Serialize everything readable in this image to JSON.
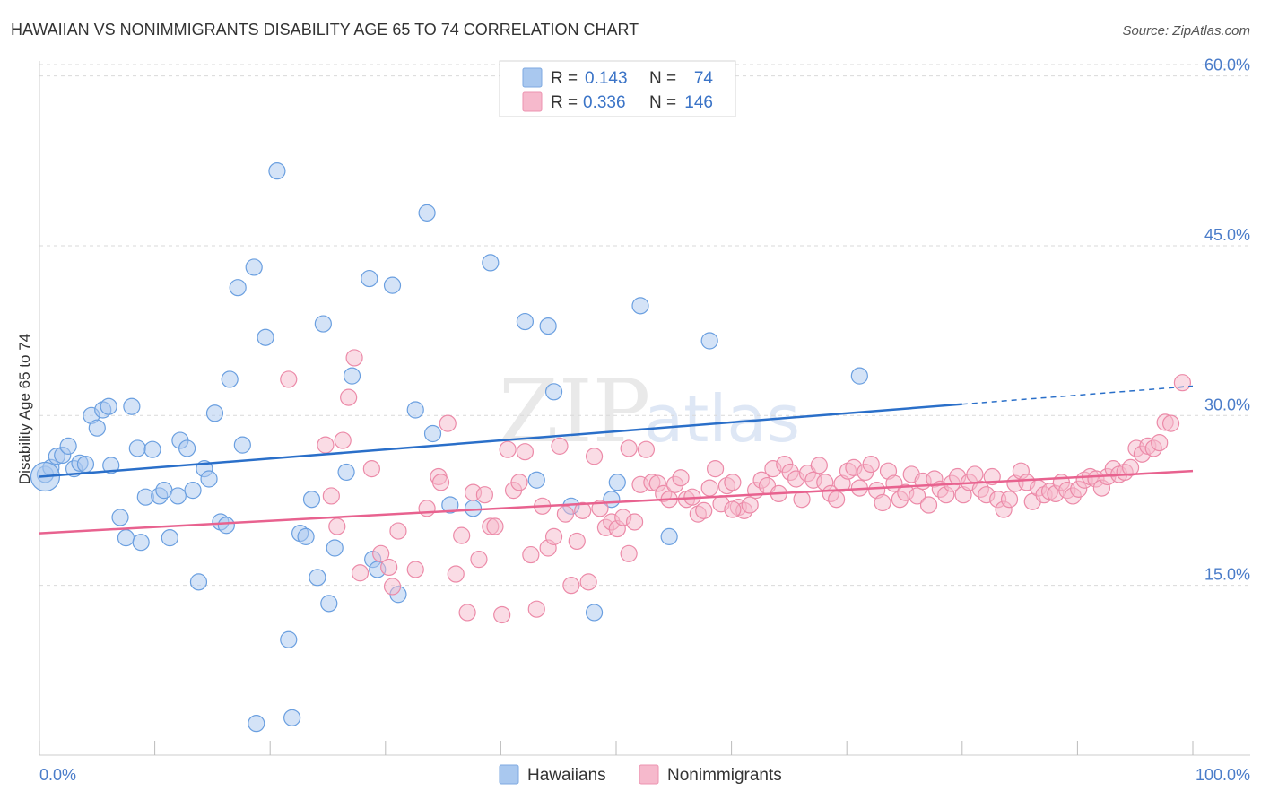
{
  "title": "HAWAIIAN VS NONIMMIGRANTS DISABILITY AGE 65 TO 74 CORRELATION CHART",
  "source": "Source: ZipAtlas.com",
  "watermark": {
    "zip": "ZIP",
    "atlas": "atlas"
  },
  "legend": {
    "rows": [
      {
        "r_label": "R =",
        "r_value": "0.143",
        "n_label": "N =",
        "n_value": "74",
        "color": "#a9c8ef"
      },
      {
        "r_label": "R =",
        "r_value": "0.336",
        "n_label": "N =",
        "n_value": "146",
        "color": "#f6b9cc"
      }
    ]
  },
  "bottom_legend": [
    {
      "label": "Hawaiians",
      "color": "#a9c8ef"
    },
    {
      "label": "Nonimmigrants",
      "color": "#f6b9cc"
    }
  ],
  "chart_data": {
    "type": "scatter",
    "title": "HAWAIIAN VS NONIMMIGRANTS DISABILITY AGE 65 TO 74 CORRELATION CHART",
    "xlabel": "",
    "ylabel": "Disability Age 65 to 74",
    "xlim": [
      0,
      100
    ],
    "ylim": [
      0,
      61
    ],
    "x_tick_labels": [
      "0.0%",
      "100.0%"
    ],
    "y_ticks": [
      15,
      30,
      45,
      60
    ],
    "y_tick_labels": [
      "15.0%",
      "30.0%",
      "45.0%",
      "60.0%"
    ],
    "grid": true,
    "legend_position": "top-center",
    "series": [
      {
        "name": "Hawaiians",
        "color": "#6a9fe0",
        "fill": "#a9c8ef",
        "trend": {
          "x0": 0,
          "y0": 24.6,
          "x1": 80,
          "y1": 31.0,
          "dash_to_x": 100,
          "dash_to_y": 32.6,
          "color": "#2a6fc9"
        },
        "points": [
          [
            0.5,
            24.8
          ],
          [
            1.0,
            25.4
          ],
          [
            1.5,
            26.4
          ],
          [
            2.0,
            26.5
          ],
          [
            2.5,
            27.3
          ],
          [
            3.0,
            25.3
          ],
          [
            3.5,
            25.8
          ],
          [
            4.0,
            25.7
          ],
          [
            6.2,
            25.6
          ],
          [
            4.5,
            30.0
          ],
          [
            5.0,
            28.9
          ],
          [
            5.5,
            30.5
          ],
          [
            6.0,
            30.8
          ],
          [
            7.0,
            21.0
          ],
          [
            7.5,
            19.2
          ],
          [
            8.0,
            30.8
          ],
          [
            8.5,
            27.1
          ],
          [
            8.8,
            18.8
          ],
          [
            9.2,
            22.8
          ],
          [
            9.8,
            27.0
          ],
          [
            10.4,
            22.9
          ],
          [
            10.8,
            23.4
          ],
          [
            11.3,
            19.2
          ],
          [
            12.0,
            22.9
          ],
          [
            12.2,
            27.8
          ],
          [
            12.8,
            27.1
          ],
          [
            13.3,
            23.4
          ],
          [
            13.8,
            15.3
          ],
          [
            14.3,
            25.3
          ],
          [
            14.7,
            24.4
          ],
          [
            15.2,
            30.2
          ],
          [
            15.7,
            20.6
          ],
          [
            16.2,
            20.3
          ],
          [
            16.5,
            33.2
          ],
          [
            17.2,
            41.3
          ],
          [
            17.6,
            27.4
          ],
          [
            18.6,
            43.1
          ],
          [
            19.6,
            36.9
          ],
          [
            20.6,
            51.6
          ],
          [
            21.6,
            10.2
          ],
          [
            21.9,
            3.3
          ],
          [
            22.6,
            19.6
          ],
          [
            23.1,
            19.3
          ],
          [
            23.6,
            22.6
          ],
          [
            24.1,
            15.7
          ],
          [
            24.6,
            38.1
          ],
          [
            25.1,
            13.4
          ],
          [
            25.6,
            18.3
          ],
          [
            26.6,
            25.0
          ],
          [
            27.1,
            33.5
          ],
          [
            28.6,
            42.1
          ],
          [
            28.9,
            17.3
          ],
          [
            29.3,
            16.4
          ],
          [
            30.6,
            41.5
          ],
          [
            31.1,
            14.2
          ],
          [
            32.6,
            30.5
          ],
          [
            33.6,
            47.9
          ],
          [
            34.1,
            28.4
          ],
          [
            35.6,
            22.1
          ],
          [
            37.6,
            21.8
          ],
          [
            39.1,
            43.5
          ],
          [
            42.1,
            38.3
          ],
          [
            43.1,
            24.3
          ],
          [
            44.1,
            37.9
          ],
          [
            44.6,
            32.1
          ],
          [
            46.1,
            22.0
          ],
          [
            48.1,
            12.6
          ],
          [
            49.6,
            22.6
          ],
          [
            50.1,
            24.1
          ],
          [
            52.1,
            39.7
          ],
          [
            54.6,
            19.3
          ],
          [
            58.1,
            36.6
          ],
          [
            71.1,
            33.5
          ],
          [
            18.8,
            2.8
          ]
        ]
      },
      {
        "name": "Nonimmigrants",
        "color": "#ec8aa8",
        "fill": "#f6b9cc",
        "trend": {
          "x0": 0,
          "y0": 19.6,
          "x1": 100,
          "y1": 25.1,
          "color": "#e8628f"
        },
        "points": [
          [
            21.6,
            33.2
          ],
          [
            24.8,
            27.4
          ],
          [
            25.3,
            22.9
          ],
          [
            25.8,
            20.2
          ],
          [
            26.3,
            27.8
          ],
          [
            26.8,
            31.6
          ],
          [
            27.3,
            35.1
          ],
          [
            27.8,
            16.1
          ],
          [
            28.8,
            25.3
          ],
          [
            29.6,
            17.8
          ],
          [
            30.3,
            16.6
          ],
          [
            30.6,
            14.9
          ],
          [
            31.1,
            19.8
          ],
          [
            32.6,
            16.4
          ],
          [
            33.6,
            21.8
          ],
          [
            34.6,
            24.6
          ],
          [
            34.8,
            24.1
          ],
          [
            35.4,
            29.3
          ],
          [
            36.1,
            16.0
          ],
          [
            36.6,
            19.4
          ],
          [
            37.1,
            12.6
          ],
          [
            37.6,
            23.2
          ],
          [
            38.1,
            17.3
          ],
          [
            38.6,
            23.0
          ],
          [
            39.1,
            20.2
          ],
          [
            39.5,
            20.2
          ],
          [
            40.1,
            12.4
          ],
          [
            40.6,
            27.0
          ],
          [
            41.1,
            23.4
          ],
          [
            41.6,
            24.1
          ],
          [
            42.1,
            26.8
          ],
          [
            42.6,
            17.7
          ],
          [
            43.1,
            12.9
          ],
          [
            43.6,
            22.0
          ],
          [
            44.1,
            18.3
          ],
          [
            44.6,
            19.3
          ],
          [
            45.1,
            27.3
          ],
          [
            45.6,
            21.3
          ],
          [
            46.1,
            15.0
          ],
          [
            46.6,
            18.9
          ],
          [
            47.1,
            21.6
          ],
          [
            47.6,
            15.3
          ],
          [
            48.1,
            26.4
          ],
          [
            48.6,
            21.8
          ],
          [
            49.1,
            20.1
          ],
          [
            49.6,
            20.6
          ],
          [
            50.1,
            20.0
          ],
          [
            50.6,
            21.0
          ],
          [
            51.1,
            17.8
          ],
          [
            51.6,
            20.6
          ],
          [
            52.1,
            23.9
          ],
          [
            52.6,
            27.0
          ],
          [
            53.1,
            24.1
          ],
          [
            53.6,
            24.0
          ],
          [
            54.1,
            23.1
          ],
          [
            54.6,
            22.6
          ],
          [
            55.1,
            23.9
          ],
          [
            55.6,
            24.5
          ],
          [
            56.1,
            22.6
          ],
          [
            56.6,
            22.8
          ],
          [
            57.1,
            21.3
          ],
          [
            57.6,
            21.6
          ],
          [
            58.1,
            23.6
          ],
          [
            58.6,
            25.3
          ],
          [
            59.1,
            22.2
          ],
          [
            59.6,
            23.8
          ],
          [
            60.1,
            24.1
          ],
          [
            60.6,
            21.9
          ],
          [
            61.1,
            21.6
          ],
          [
            61.6,
            22.1
          ],
          [
            62.1,
            23.4
          ],
          [
            62.6,
            24.3
          ],
          [
            63.1,
            23.8
          ],
          [
            63.6,
            25.3
          ],
          [
            64.1,
            23.1
          ],
          [
            64.6,
            25.7
          ],
          [
            65.1,
            25.0
          ],
          [
            65.6,
            24.4
          ],
          [
            66.1,
            22.6
          ],
          [
            66.6,
            24.9
          ],
          [
            67.1,
            24.3
          ],
          [
            67.6,
            25.6
          ],
          [
            68.1,
            24.1
          ],
          [
            68.6,
            23.1
          ],
          [
            69.1,
            22.6
          ],
          [
            69.6,
            24.0
          ],
          [
            70.1,
            25.1
          ],
          [
            70.6,
            25.4
          ],
          [
            71.1,
            23.6
          ],
          [
            71.6,
            25.0
          ],
          [
            72.1,
            25.7
          ],
          [
            72.6,
            23.4
          ],
          [
            73.1,
            22.3
          ],
          [
            73.6,
            25.1
          ],
          [
            74.1,
            24.0
          ],
          [
            74.6,
            22.6
          ],
          [
            75.1,
            23.2
          ],
          [
            75.6,
            24.8
          ],
          [
            76.1,
            22.9
          ],
          [
            76.6,
            24.2
          ],
          [
            77.1,
            22.1
          ],
          [
            77.6,
            24.4
          ],
          [
            78.1,
            23.5
          ],
          [
            78.6,
            23.0
          ],
          [
            79.1,
            24.0
          ],
          [
            79.6,
            24.6
          ],
          [
            80.1,
            23.0
          ],
          [
            80.6,
            24.1
          ],
          [
            81.1,
            24.8
          ],
          [
            81.6,
            23.5
          ],
          [
            82.1,
            23.0
          ],
          [
            82.6,
            24.6
          ],
          [
            83.1,
            22.6
          ],
          [
            83.6,
            21.7
          ],
          [
            84.1,
            22.6
          ],
          [
            84.6,
            24.0
          ],
          [
            85.1,
            25.1
          ],
          [
            85.6,
            24.1
          ],
          [
            86.1,
            22.4
          ],
          [
            86.6,
            23.6
          ],
          [
            87.1,
            23.0
          ],
          [
            87.6,
            23.3
          ],
          [
            88.1,
            23.1
          ],
          [
            88.6,
            24.1
          ],
          [
            89.1,
            23.4
          ],
          [
            89.6,
            22.9
          ],
          [
            90.1,
            23.5
          ],
          [
            90.6,
            24.3
          ],
          [
            91.1,
            24.6
          ],
          [
            91.6,
            24.4
          ],
          [
            92.1,
            23.6
          ],
          [
            92.6,
            24.6
          ],
          [
            93.1,
            25.3
          ],
          [
            93.6,
            24.8
          ],
          [
            94.1,
            25.0
          ],
          [
            94.6,
            25.4
          ],
          [
            95.1,
            27.1
          ],
          [
            95.6,
            26.6
          ],
          [
            96.1,
            27.3
          ],
          [
            96.6,
            27.1
          ],
          [
            97.1,
            27.6
          ],
          [
            97.6,
            29.4
          ],
          [
            98.1,
            29.3
          ],
          [
            99.1,
            32.9
          ],
          [
            51.1,
            27.1
          ],
          [
            60.1,
            21.7
          ]
        ]
      }
    ]
  }
}
